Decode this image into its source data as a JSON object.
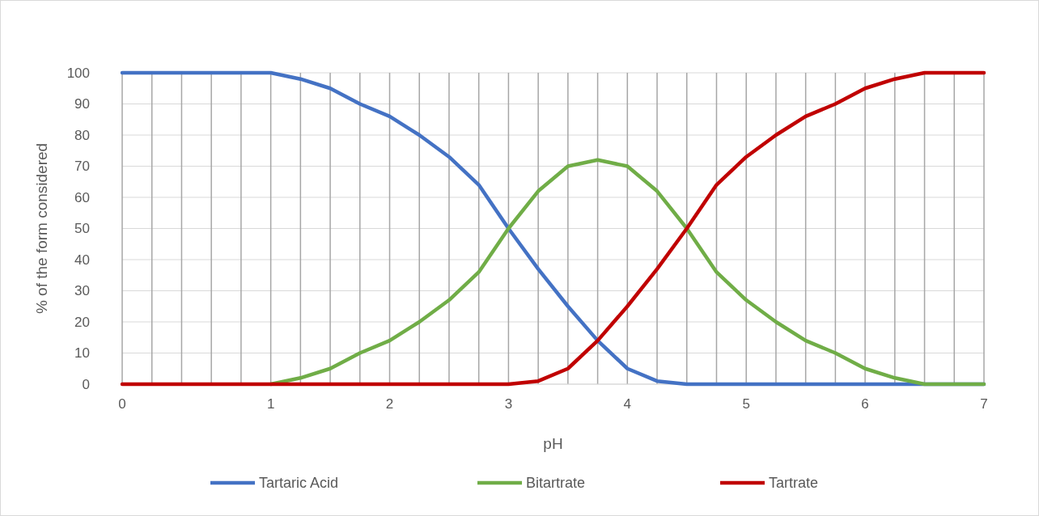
{
  "chart_data": {
    "type": "line",
    "xlabel": "pH",
    "ylabel": "% of the form considered",
    "categories": [
      "0",
      null,
      null,
      null,
      null,
      "1",
      null,
      null,
      null,
      "2",
      null,
      null,
      null,
      "3",
      null,
      null,
      null,
      "4",
      null,
      null,
      null,
      "5",
      null,
      null,
      null,
      "6",
      null,
      null,
      null,
      "7"
    ],
    "series": [
      {
        "name": "Tartaric Acid",
        "color": "#4472c4",
        "values": [
          100,
          100,
          100,
          100,
          100,
          100,
          98,
          95,
          90,
          86,
          80,
          73,
          64,
          50,
          37,
          25,
          14,
          5,
          1,
          0,
          0,
          0,
          0,
          0,
          0,
          0,
          0,
          0,
          0,
          0
        ]
      },
      {
        "name": "Bitartrate",
        "color": "#70ad47",
        "values": [
          null,
          null,
          null,
          null,
          null,
          0,
          2,
          5,
          10,
          14,
          20,
          27,
          36,
          50,
          62,
          70,
          72,
          70,
          62,
          50,
          36,
          27,
          20,
          14,
          10,
          5,
          2,
          0,
          0,
          0
        ]
      },
      {
        "name": "Tartrate",
        "color": "#c00000",
        "values": [
          0,
          0,
          0,
          0,
          0,
          0,
          0,
          0,
          0,
          0,
          0,
          0,
          0,
          0,
          1,
          5,
          14,
          25,
          37,
          50,
          64,
          73,
          80,
          86,
          90,
          95,
          98,
          100,
          100,
          100
        ]
      }
    ],
    "ylim": [
      0,
      100
    ],
    "yticks": [
      0,
      10,
      20,
      30,
      40,
      50,
      60,
      70,
      80,
      90,
      100
    ],
    "grid": true,
    "legend": "bottom",
    "marker": "none",
    "line_style": "solid"
  }
}
